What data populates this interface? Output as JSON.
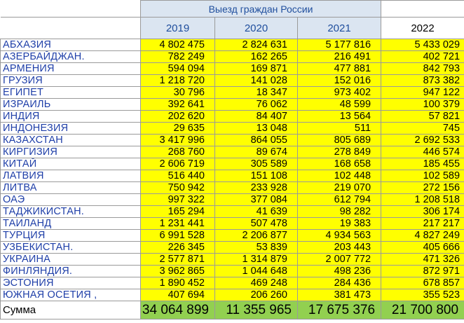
{
  "header": {
    "title": "Выезд граждан России",
    "years": [
      "2019",
      "2020",
      "2021",
      "2022"
    ]
  },
  "rows": [
    {
      "country": "АБХАЗИЯ",
      "values": [
        "4 802 475",
        "2 824 631",
        "5 177 816",
        "5 433 029"
      ]
    },
    {
      "country": "АЗЕРБАЙДЖАН.",
      "values": [
        "782 249",
        "162 265",
        "216 491",
        "402 721"
      ]
    },
    {
      "country": "АРМЕНИЯ",
      "values": [
        "594 094",
        "169 871",
        "477 881",
        "842 793"
      ]
    },
    {
      "country": "ГРУЗИЯ",
      "values": [
        "1 218 720",
        "141 028",
        "152 016",
        "873 382"
      ]
    },
    {
      "country": "ЕГИПЕТ",
      "values": [
        "30 796",
        "18 347",
        "973 402",
        "947 122"
      ]
    },
    {
      "country": "ИЗРАИЛЬ",
      "values": [
        "392 641",
        "76 062",
        "48 599",
        "100 379"
      ]
    },
    {
      "country": "ИНДИЯ",
      "values": [
        "202 620",
        "84 407",
        "13 564",
        "57 821"
      ]
    },
    {
      "country": "ИНДОНЕЗИЯ",
      "values": [
        "29 635",
        "13 048",
        "511",
        "745"
      ]
    },
    {
      "country": "КАЗАХСТАН",
      "values": [
        "3 417 996",
        "864 055",
        "805 689",
        "2 692 533"
      ]
    },
    {
      "country": "КИРГИЗИЯ",
      "values": [
        "268 760",
        "89 674",
        "278 849",
        "446 574"
      ]
    },
    {
      "country": "КИТАЙ",
      "values": [
        "2 606 719",
        "305 589",
        "168 658",
        "185 455"
      ]
    },
    {
      "country": "ЛАТВИЯ",
      "values": [
        "516 440",
        "151 108",
        "102 448",
        "102 589"
      ]
    },
    {
      "country": "ЛИТВА",
      "values": [
        "750 942",
        "233 928",
        "219 070",
        "272 156"
      ]
    },
    {
      "country": "ОАЭ",
      "values": [
        "997 322",
        "377 084",
        "612 794",
        "1 208 518"
      ]
    },
    {
      "country": "ТАДЖИКИСТАН.",
      "values": [
        "165 294",
        "41 639",
        "98 282",
        "306 174"
      ]
    },
    {
      "country": "ТАИЛАНД",
      "values": [
        "1 231 441",
        "507 478",
        "19 383",
        "217 217"
      ]
    },
    {
      "country": "ТУРЦИЯ",
      "values": [
        "6 991 528",
        "2 206 877",
        "4 934 563",
        "4 827 249"
      ]
    },
    {
      "country": "УЗБЕКИСТАН.",
      "values": [
        "226 345",
        "53 839",
        "203 443",
        "405 666"
      ]
    },
    {
      "country": "УКРАИНА",
      "values": [
        "2 577 871",
        "1 314 879",
        "2 007 772",
        "471 326"
      ]
    },
    {
      "country": "ФИНЛЯНДИЯ.",
      "values": [
        "3 962 865",
        "1 044 648",
        "498 236",
        "872 971"
      ]
    },
    {
      "country": "ЭСТОНИЯ",
      "values": [
        "1 890 452",
        "469 248",
        "284 436",
        "678 857"
      ]
    },
    {
      "country": "ЮЖНАЯ ОСЕТИЯ ,",
      "values": [
        "407 694",
        "206 260",
        "381 473",
        "355 523"
      ]
    }
  ],
  "total": {
    "label": "Сумма",
    "values": [
      "34 064 899",
      "11 355 965",
      "17 675 376",
      "21 700 800"
    ]
  },
  "colors": {
    "data_fill": "#ffff00",
    "total_fill": "#92d050",
    "header_fill": "#dbe5f1",
    "country_text": "#1f3fa8"
  }
}
